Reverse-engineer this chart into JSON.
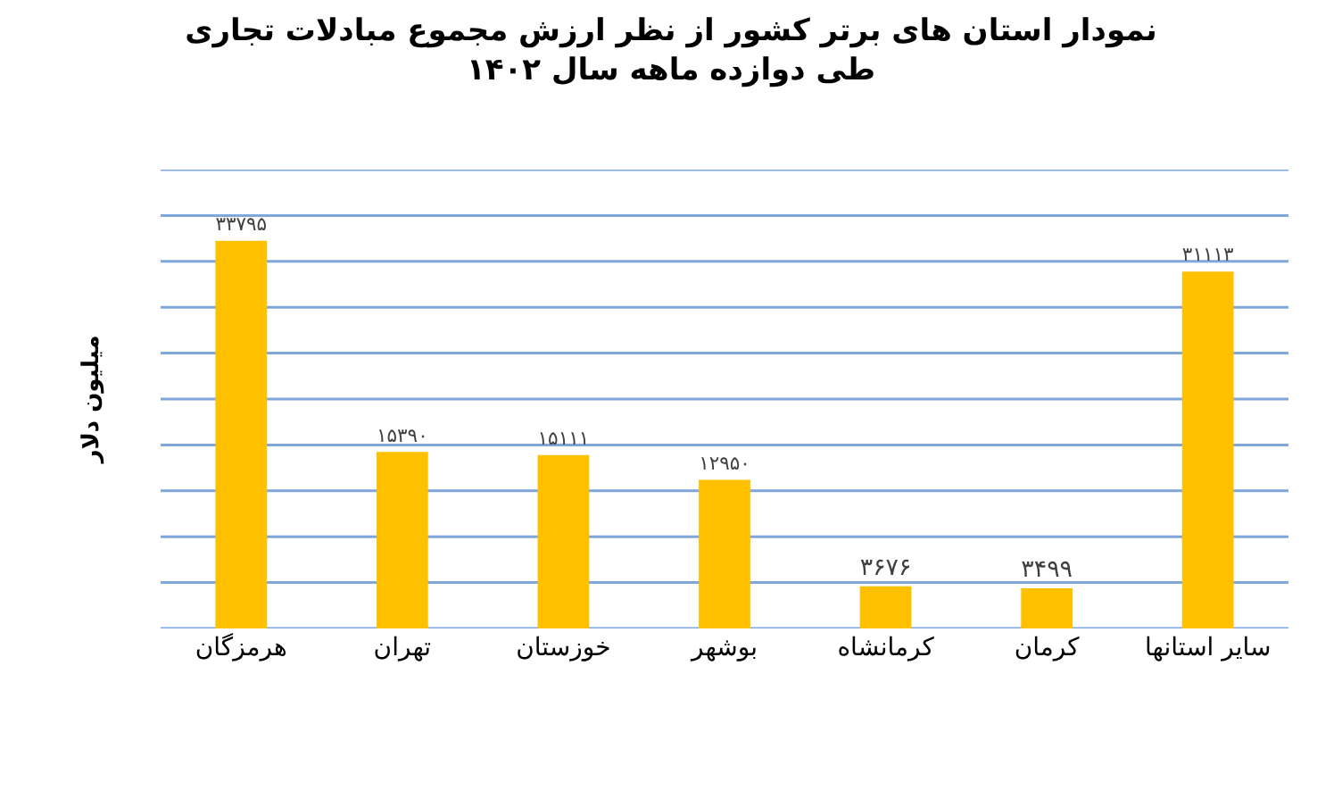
{
  "chart_data": {
    "type": "bar",
    "title": "نمودار استان های برتر کشور از نظر ارزش مجموع مبادلات تجاری\nطی دوازده ماهه سال ۱۴۰۲",
    "ylabel": "میلیون دلار",
    "categories": [
      "هرمزگان",
      "تهران",
      "خوزستان",
      "بوشهر",
      "کرمانشاه",
      "کرمان",
      "سایر استانها"
    ],
    "values": [
      33795,
      15390,
      15111,
      12950,
      3676,
      3499,
      31113
    ],
    "value_labels": [
      "۳۳۷۹۵",
      "۱۵۳۹۰",
      "۱۵۱۱۱",
      "۱۲۹۵۰",
      "۳۶۷۶",
      "۳۴۹۹",
      "۳۱۱۱۳"
    ],
    "color": "#ffc000",
    "ylim": [
      0,
      40000
    ],
    "yticks": [
      {
        "value": 0,
        "label": null
      },
      {
        "value": 4000,
        "label": null
      },
      {
        "value": 8000,
        "label": null
      },
      {
        "value": 12000,
        "label": null
      },
      {
        "value": 16000,
        "label": null
      },
      {
        "value": 20000,
        "label": null
      },
      {
        "value": 24000,
        "label": null
      },
      {
        "value": 28000,
        "label": null
      },
      {
        "value": 32000,
        "label": null
      },
      {
        "value": 36000,
        "label": null
      },
      {
        "value": 40000,
        "label": null
      }
    ],
    "tick_labels": "x",
    "grid": "y",
    "legend": false
  }
}
